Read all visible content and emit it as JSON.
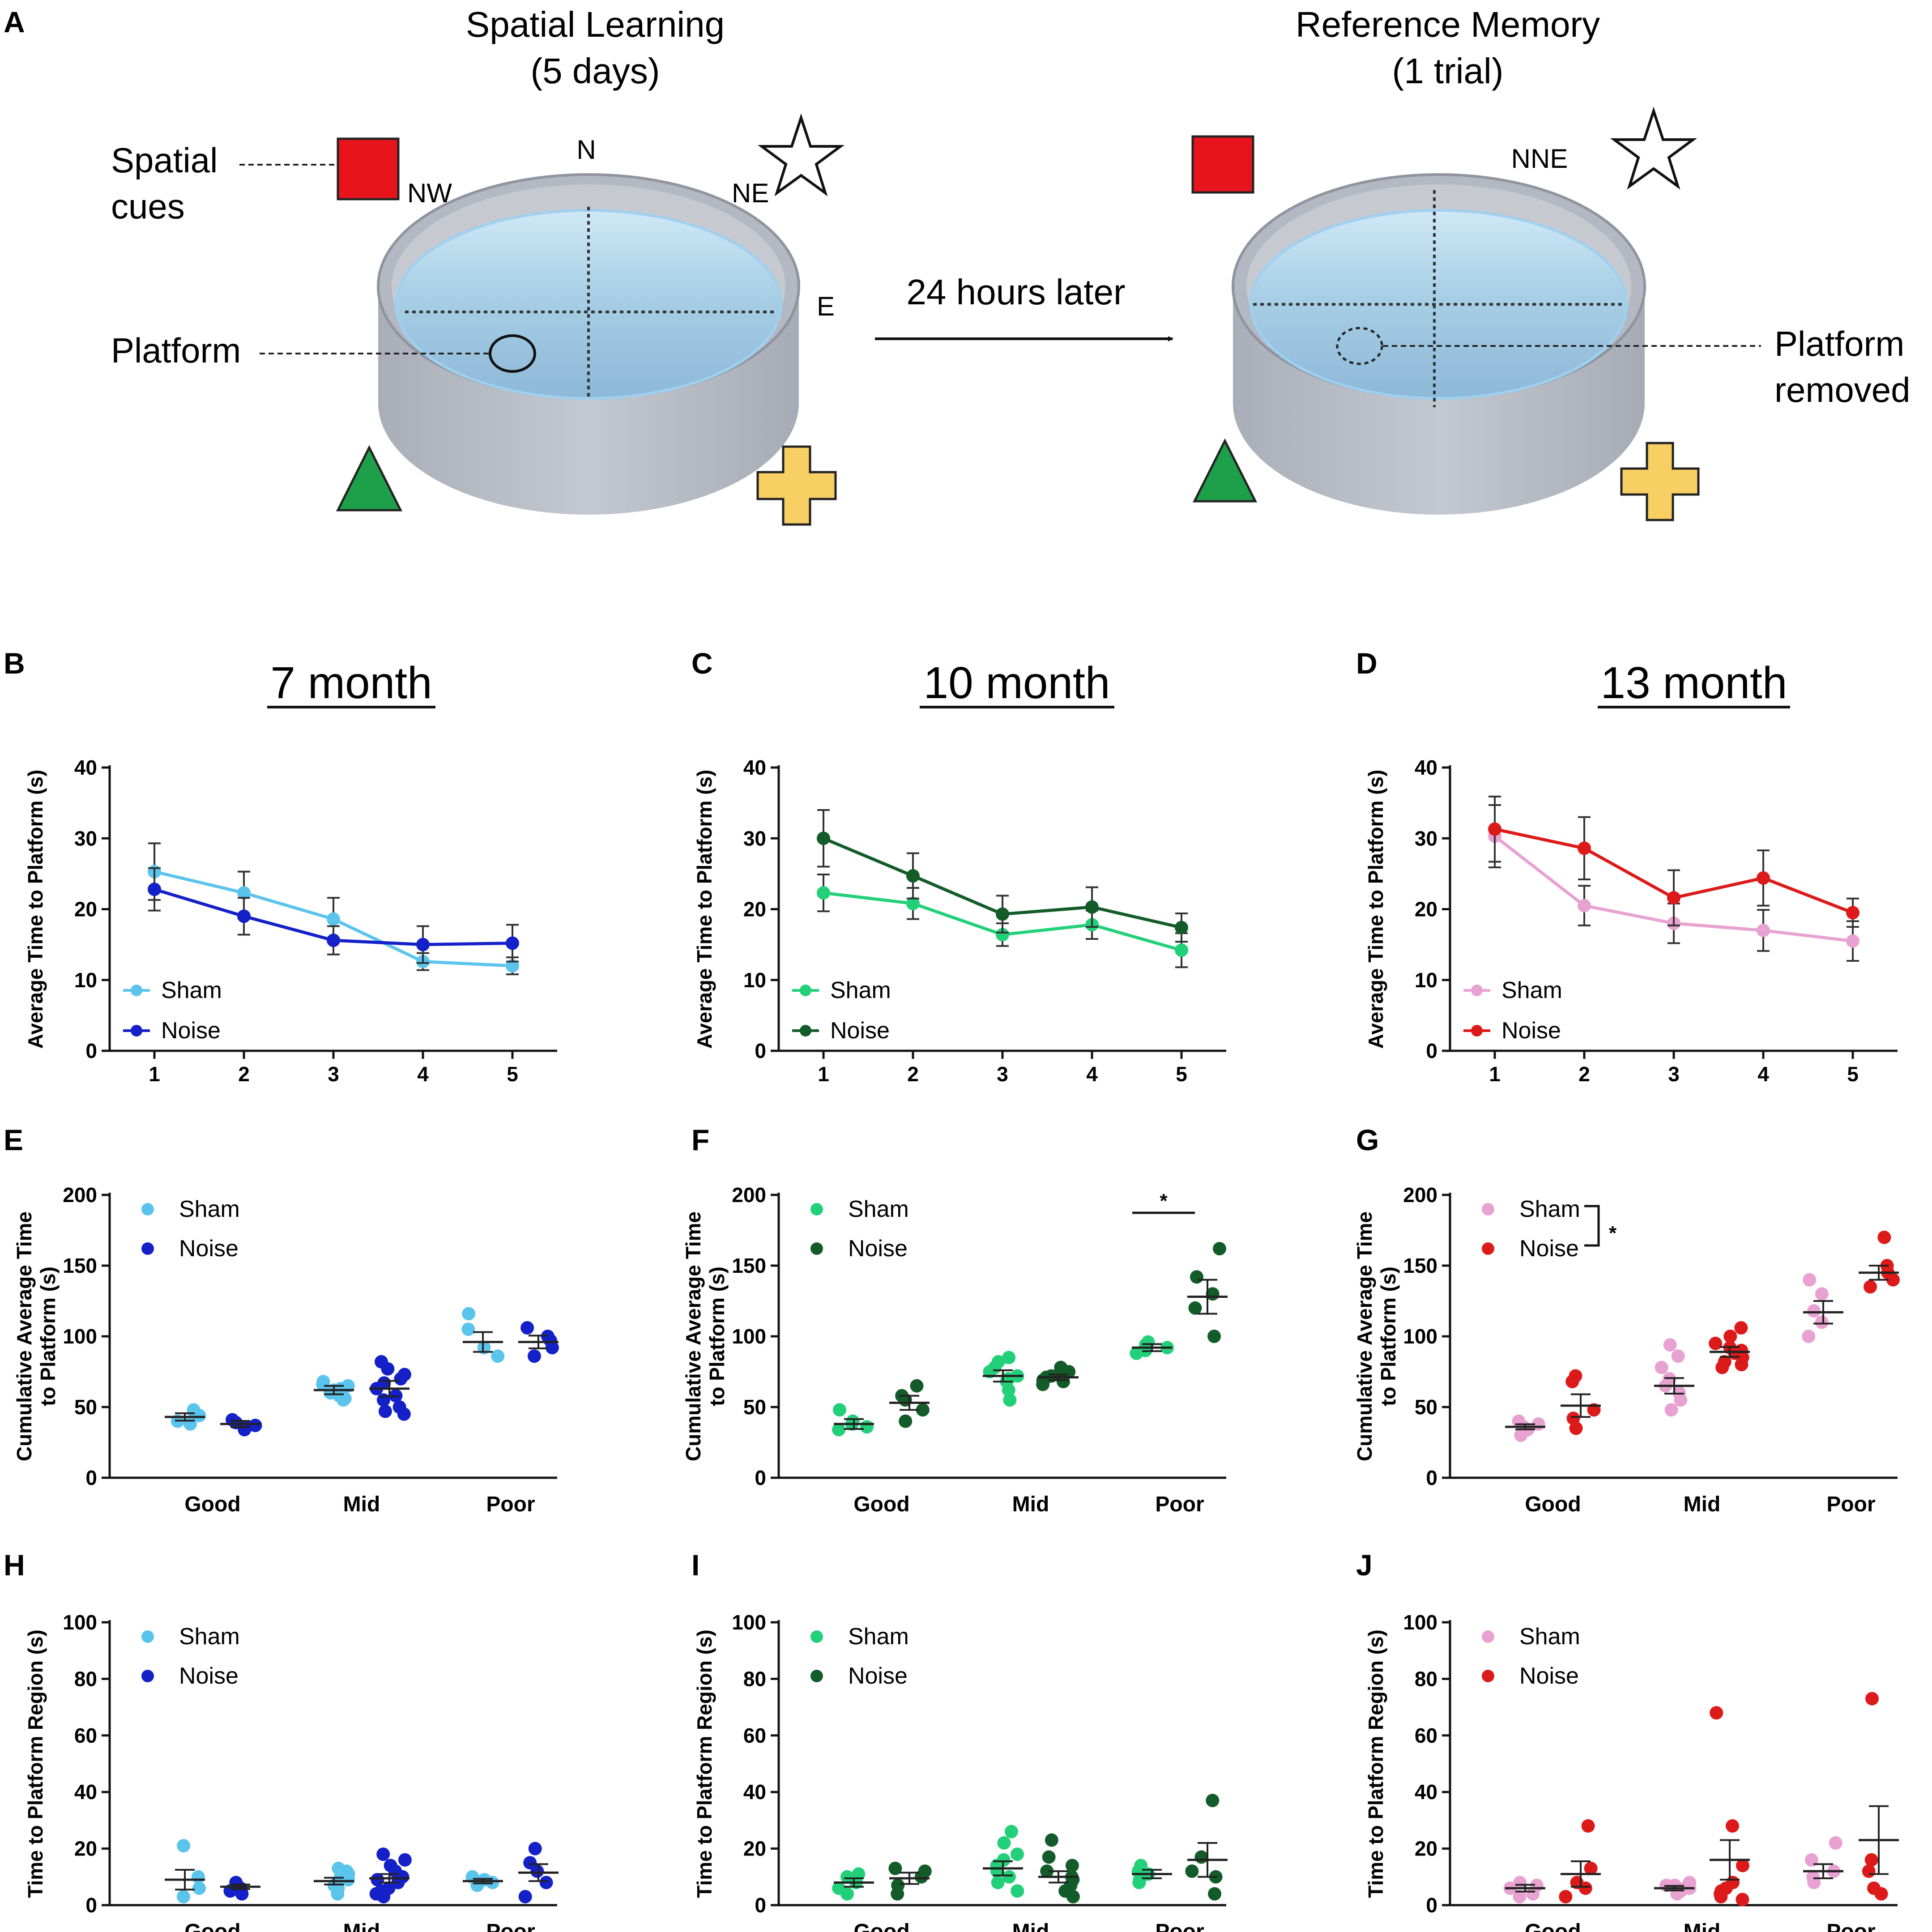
{
  "schematic": {
    "panel_letter": "A",
    "left_title": [
      "Spatial Learning",
      "(5 days)"
    ],
    "right_title": [
      "Reference Memory",
      "(1 trial)"
    ],
    "spatial_cues_label": [
      "Spatial",
      "cues"
    ],
    "platform_label": "Platform",
    "platform_removed_label": [
      "Platform",
      "removed"
    ],
    "arrow_label": "24 hours later",
    "directions": {
      "n": "N",
      "nw": "NW",
      "ne": "NE",
      "e": "E",
      "nne": "NNE"
    },
    "cue_colors": {
      "square": "#e8141c",
      "triangle": "#1ea04a",
      "cross": "#f7cf62",
      "star": "#ffffff"
    }
  },
  "column_titles": [
    "7 month",
    "10 month",
    "13 month"
  ],
  "legend": {
    "sham": "Sham",
    "noise": "Noise"
  },
  "colors": {
    "c7": {
      "sham": "#5bc4ec",
      "noise": "#1420c8"
    },
    "c10": {
      "sham": "#22d07a",
      "noise": "#135c2a"
    },
    "c13": {
      "sham": "#e8a2d2",
      "noise": "#dd1a1a"
    }
  },
  "significance": {
    "f_marker": "*",
    "g_marker": "*"
  },
  "chart_data": [
    {
      "panel": "B",
      "type": "line",
      "column": 0,
      "ylabel": "Average Time to Platform (s)",
      "x": [
        "1",
        "2",
        "3",
        "4",
        "5"
      ],
      "ylim": [
        0,
        40
      ],
      "yticks": [
        0,
        10,
        20,
        30,
        40
      ],
      "series": [
        {
          "name": "Sham",
          "values": [
            25.3,
            22.3,
            18.6,
            12.6,
            12.0
          ],
          "err": [
            4.0,
            3.0,
            3.0,
            1.2,
            1.2
          ]
        },
        {
          "name": "Noise",
          "values": [
            22.8,
            19.0,
            15.6,
            15.0,
            15.2
          ],
          "err": [
            3.0,
            2.6,
            2.0,
            2.6,
            2.6
          ]
        }
      ]
    },
    {
      "panel": "C",
      "type": "line",
      "column": 1,
      "ylabel": "Average Time to Platform (s)",
      "x": [
        "1",
        "2",
        "3",
        "4",
        "5"
      ],
      "ylim": [
        0,
        40
      ],
      "yticks": [
        0,
        10,
        20,
        30,
        40
      ],
      "series": [
        {
          "name": "Sham",
          "values": [
            22.3,
            20.8,
            16.4,
            17.8,
            14.2
          ],
          "err": [
            2.6,
            2.2,
            1.6,
            2.0,
            2.4
          ]
        },
        {
          "name": "Noise",
          "values": [
            30.0,
            24.7,
            19.3,
            20.3,
            17.4
          ],
          "err": [
            4.0,
            3.2,
            2.6,
            2.8,
            2.0
          ]
        }
      ]
    },
    {
      "panel": "D",
      "type": "line",
      "column": 2,
      "ylabel": "Average Time to Platform (s)",
      "x": [
        "1",
        "2",
        "3",
        "4",
        "5"
      ],
      "ylim": [
        0,
        40
      ],
      "yticks": [
        0,
        10,
        20,
        30,
        40
      ],
      "series": [
        {
          "name": "Sham",
          "values": [
            30.3,
            20.5,
            18.0,
            17.0,
            15.5
          ],
          "err": [
            4.4,
            2.8,
            2.8,
            2.9,
            2.8
          ]
        },
        {
          "name": "Noise",
          "values": [
            31.3,
            28.6,
            21.6,
            24.4,
            19.5
          ],
          "err": [
            4.6,
            4.4,
            3.9,
            3.9,
            2.0
          ]
        }
      ]
    },
    {
      "panel": "E",
      "type": "scatter",
      "column": 1,
      "ylabel": [
        "Cumulative Average Time",
        "to Platform (s)"
      ],
      "categories": [
        "Good",
        "Mid",
        "Poor"
      ],
      "ylim": [
        0,
        200
      ],
      "yticks": [
        0,
        50,
        100,
        150,
        200
      ],
      "groups": {
        "Sham": [
          {
            "mean": 43,
            "sem": 2.6,
            "points": [
              40,
              44,
              47,
              48,
              38
            ]
          },
          {
            "mean": 62,
            "sem": 3.0,
            "points": [
              56,
              58,
              60,
              62,
              63,
              66,
              68,
              55,
              65
            ]
          },
          {
            "mean": 96,
            "sem": 7.0,
            "points": [
              86,
              92,
              105,
              116
            ]
          }
        ],
        "Noise": [
          {
            "mean": 38,
            "sem": 2.2,
            "points": [
              34,
              36,
              39,
              41,
              37
            ]
          },
          {
            "mean": 63,
            "sem": 5.5,
            "points": [
              45,
              50,
              55,
              58,
              63,
              67,
              70,
              73,
              77,
              82,
              47
            ]
          },
          {
            "mean": 96,
            "sem": 4.5,
            "points": [
              86,
              92,
              97,
              100,
              106
            ]
          }
        ]
      }
    },
    {
      "panel": "F",
      "type": "scatter",
      "column": 1,
      "ylabel": [
        "Cumulative Average Time",
        "to Platform (s)"
      ],
      "categories": [
        "Good",
        "Mid",
        "Poor"
      ],
      "ylim": [
        0,
        200
      ],
      "yticks": [
        0,
        50,
        100,
        150,
        200
      ],
      "groups": {
        "Sham": [
          {
            "mean": 38,
            "sem": 3.5,
            "points": [
              34,
              36,
              38,
              40,
              48
            ]
          },
          {
            "mean": 72,
            "sem": 4.0,
            "points": [
              55,
              62,
              68,
              70,
              72,
              75,
              78,
              82,
              85
            ]
          },
          {
            "mean": 92,
            "sem": 2.5,
            "points": [
              88,
              90,
              92,
              94,
              96
            ]
          }
        ],
        "Noise": [
          {
            "mean": 53,
            "sem": 5.0,
            "points": [
              40,
              48,
              55,
              58,
              65
            ]
          },
          {
            "mean": 71,
            "sem": 2.0,
            "points": [
              66,
              68,
              70,
              71,
              72,
              73,
              75,
              78,
              69
            ]
          },
          {
            "mean": 128,
            "sem": 12.0,
            "points": [
              100,
              120,
              130,
              142,
              162
            ]
          }
        ]
      }
    },
    {
      "panel": "G",
      "type": "scatter",
      "column": 2,
      "ylabel": [
        "Cumulative Average Time",
        "to Platform (s)"
      ],
      "categories": [
        "Good",
        "Mid",
        "Poor"
      ],
      "ylim": [
        0,
        200
      ],
      "yticks": [
        0,
        50,
        100,
        150,
        200
      ],
      "groups": {
        "Sham": [
          {
            "mean": 36,
            "sem": 1.8,
            "points": [
              30,
              34,
              36,
              38,
              40
            ]
          },
          {
            "mean": 65,
            "sem": 5.5,
            "points": [
              48,
              55,
              60,
              65,
              70,
              78,
              86,
              94
            ]
          },
          {
            "mean": 117,
            "sem": 8.0,
            "points": [
              100,
              110,
              118,
              130,
              140
            ]
          }
        ],
        "Noise": [
          {
            "mean": 51,
            "sem": 8.0,
            "points": [
              35,
              42,
              48,
              68,
              72
            ]
          },
          {
            "mean": 89,
            "sem": 3.5,
            "points": [
              78,
              82,
              85,
              88,
              90,
              92,
              95,
              100,
              106,
              80
            ]
          },
          {
            "mean": 145,
            "sem": 5.0,
            "points": [
              135,
              140,
              145,
              150,
              170
            ]
          }
        ]
      }
    },
    {
      "panel": "H",
      "type": "scatter",
      "column": 0,
      "ylabel": "Time to Platform Region (s)",
      "categories": [
        "Good",
        "Mid",
        "Poor"
      ],
      "ylim": [
        0,
        100
      ],
      "yticks": [
        0,
        20,
        40,
        60,
        80,
        100
      ],
      "groups": {
        "Sham": [
          {
            "mean": 9,
            "sem": 3.5,
            "points": [
              3,
              6,
              10,
              21
            ]
          },
          {
            "mean": 8.5,
            "sem": 1.2,
            "points": [
              4,
              6,
              7,
              8,
              9,
              10,
              11,
              12,
              13
            ]
          },
          {
            "mean": 8.5,
            "sem": 0.8,
            "points": [
              7,
              8,
              9,
              10
            ]
          }
        ],
        "Noise": [
          {
            "mean": 6.5,
            "sem": 0.8,
            "points": [
              4,
              5,
              6,
              7,
              8
            ]
          },
          {
            "mean": 9.5,
            "sem": 1.5,
            "points": [
              3,
              5,
              6,
              8,
              9,
              10,
              12,
              14,
              16,
              18,
              4
            ]
          },
          {
            "mean": 11.5,
            "sem": 3.0,
            "points": [
              3,
              8,
              12,
              15,
              20
            ]
          }
        ]
      }
    },
    {
      "panel": "I",
      "type": "scatter",
      "column": 1,
      "ylabel": "Time to Platform Region (s)",
      "categories": [
        "Good",
        "Mid",
        "Poor"
      ],
      "ylim": [
        0,
        100
      ],
      "yticks": [
        0,
        20,
        40,
        60,
        80,
        100
      ],
      "groups": {
        "Sham": [
          {
            "mean": 8,
            "sem": 1.5,
            "points": [
              4,
              6,
              8,
              10,
              11
            ]
          },
          {
            "mean": 13,
            "sem": 2.5,
            "points": [
              5,
              8,
              10,
              12,
              14,
              16,
              18,
              22,
              26
            ]
          },
          {
            "mean": 11,
            "sem": 1.5,
            "points": [
              8,
              9,
              11,
              12,
              14
            ]
          }
        ],
        "Noise": [
          {
            "mean": 9.5,
            "sem": 2.0,
            "points": [
              4,
              7,
              10,
              12,
              13
            ]
          },
          {
            "mean": 10,
            "sem": 2.0,
            "points": [
              3,
              5,
              7,
              9,
              10,
              12,
              14,
              17,
              23
            ]
          },
          {
            "mean": 16,
            "sem": 6.0,
            "points": [
              4,
              10,
              12,
              17,
              37
            ]
          }
        ]
      }
    },
    {
      "panel": "J",
      "type": "scatter",
      "column": 2,
      "ylabel": "Time to Platform Region (s)",
      "categories": [
        "Good",
        "Mid",
        "Poor"
      ],
      "ylim": [
        0,
        100
      ],
      "yticks": [
        0,
        20,
        40,
        60,
        80,
        100
      ],
      "groups": {
        "Sham": [
          {
            "mean": 6,
            "sem": 1.2,
            "points": [
              3,
              4,
              6,
              7,
              8
            ]
          },
          {
            "mean": 6,
            "sem": 0.8,
            "points": [
              4,
              5,
              5,
              6,
              6,
              7,
              7,
              8
            ]
          },
          {
            "mean": 12,
            "sem": 2.5,
            "points": [
              8,
              10,
              12,
              16,
              22
            ]
          }
        ],
        "Noise": [
          {
            "mean": 11,
            "sem": 4.5,
            "points": [
              3,
              6,
              8,
              13,
              28
            ]
          },
          {
            "mean": 16,
            "sem": 7.0,
            "points": [
              2,
              3,
              4,
              5,
              6,
              8,
              14,
              28,
              68
            ]
          },
          {
            "mean": 23,
            "sem": 12.0,
            "points": [
              4,
              6,
              12,
              16,
              73
            ]
          }
        ]
      }
    }
  ],
  "panel_letters": [
    "B",
    "C",
    "D",
    "E",
    "F",
    "G",
    "H",
    "I",
    "J"
  ]
}
